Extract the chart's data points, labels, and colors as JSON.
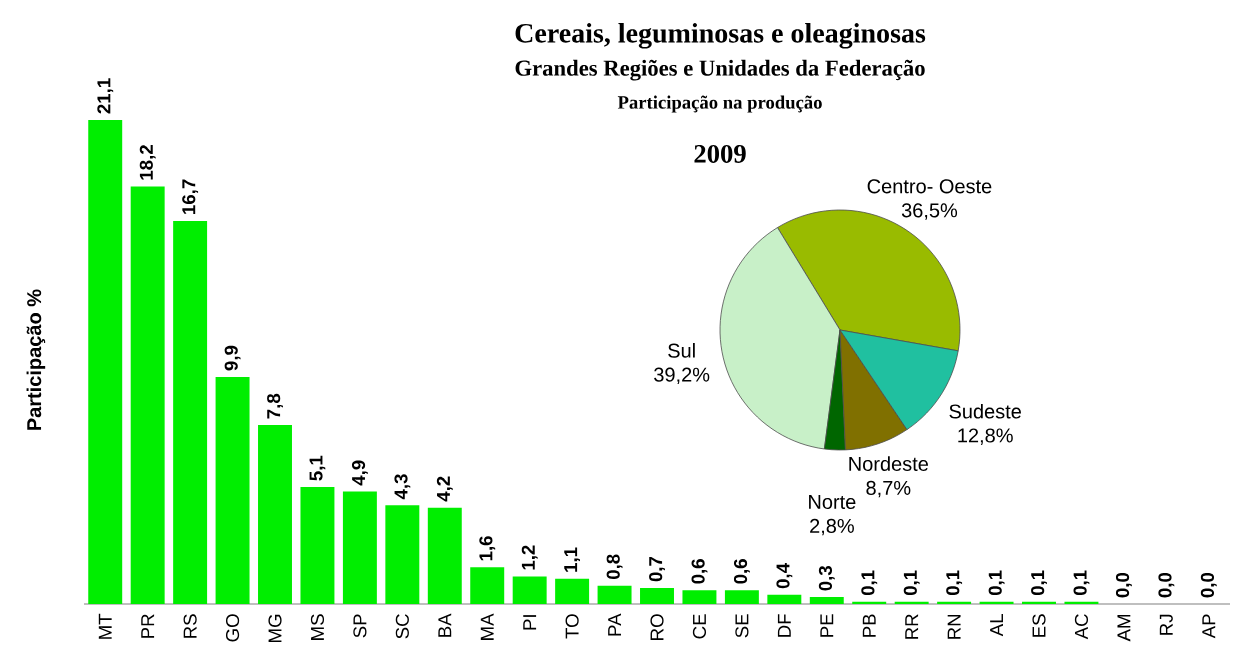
{
  "chart_data": [
    {
      "type": "bar",
      "title": "Cereais, leguminosas e oleaginosas",
      "subtitle": "Grandes Regiões e Unidades da Federação",
      "annotations": [
        "Participação na produção",
        "2009"
      ],
      "ylabel": "Participação %",
      "categories": [
        "MT",
        "PR",
        "RS",
        "GO",
        "MG",
        "MS",
        "SP",
        "SC",
        "BA",
        "MA",
        "PI",
        "TO",
        "PA",
        "RO",
        "CE",
        "SE",
        "DF",
        "PE",
        "PB",
        "RR",
        "RN",
        "AL",
        "ES",
        "AC",
        "AM",
        "RJ",
        "AP"
      ],
      "values": [
        21.1,
        18.2,
        16.7,
        9.9,
        7.8,
        5.1,
        4.9,
        4.3,
        4.2,
        1.6,
        1.2,
        1.1,
        0.8,
        0.7,
        0.6,
        0.6,
        0.4,
        0.3,
        0.1,
        0.1,
        0.1,
        0.1,
        0.1,
        0.1,
        0.0,
        0.0,
        0.0
      ],
      "value_labels": [
        "21,1",
        "18,2",
        "16,7",
        "9,9",
        "7,8",
        "5,1",
        "4,9",
        "4,3",
        "4,2",
        "1,6",
        "1,2",
        "1,1",
        "0,8",
        "0,7",
        "0,6",
        "0,6",
        "0,4",
        "0,3",
        "0,1",
        "0,1",
        "0,1",
        "0,1",
        "0,1",
        "0,1",
        "0,0",
        "0,0",
        "0,0"
      ],
      "color": "#00ee00"
    },
    {
      "type": "pie",
      "categories": [
        "Centro- Oeste",
        "Sul",
        "Norte",
        "Nordeste",
        "Sudeste"
      ],
      "values": [
        36.5,
        39.2,
        2.8,
        8.7,
        12.8
      ],
      "value_labels": [
        "36,5%",
        "39,2%",
        "2,8%",
        "8,7%",
        "12,8%"
      ],
      "colors": [
        "#99bb00",
        "#c8f0c8",
        "#006600",
        "#807000",
        "#20c0a0"
      ]
    }
  ]
}
